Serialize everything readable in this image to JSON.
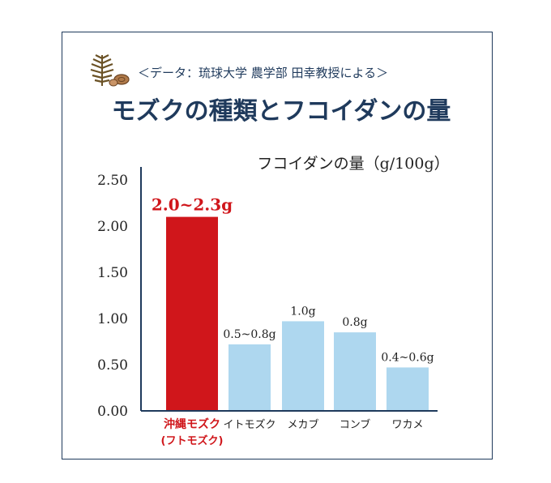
{
  "header": {
    "source": "＜データ：琉球大学 農学部 田幸教授による＞",
    "title": "モズクの種類とフコイダンの量"
  },
  "colors": {
    "navy": "#1f3a5c",
    "highlight_bar": "#d0161b",
    "bar": "#aed7ef"
  },
  "chart_data": {
    "type": "bar",
    "title": "フコイダンの量（g/100g）",
    "ylim": [
      0,
      2.5
    ],
    "yticks": [
      "0.00",
      "0.50",
      "1.00",
      "1.50",
      "2.00",
      "2.50"
    ],
    "categories": [
      "沖縄モズク",
      "イトモズク",
      "メカブ",
      "コンブ",
      "ワカメ"
    ],
    "category_sublabels": [
      "(フトモズク)",
      "",
      "",
      "",
      ""
    ],
    "values": [
      2.1,
      0.72,
      0.97,
      0.85,
      0.47
    ],
    "value_labels": [
      "2.0~2.3g",
      "0.5~0.8g",
      "1.0g",
      "0.8g",
      "0.4~0.6g"
    ],
    "highlight_index": 0,
    "grid": false
  }
}
